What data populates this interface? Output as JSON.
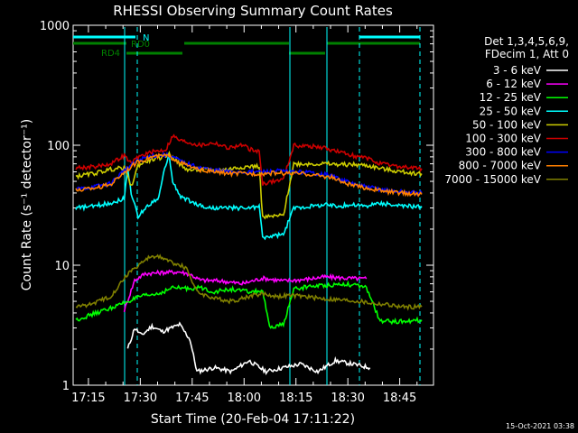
{
  "chart_data": {
    "type": "line",
    "title": "RHESSI Observing Summary Count Rates",
    "xlabel": "Start Time (20-Feb-04 17:11:22)",
    "ylabel": "Count Rate (s⁻¹ detector⁻¹)",
    "x_unit": "minutes after 17:11:22",
    "xlim": [
      0,
      100
    ],
    "ylim": [
      1,
      1000
    ],
    "yscale": "log",
    "x_ticks": [
      "17:15",
      "17:30",
      "17:45",
      "18:00",
      "18:15",
      "18:30",
      "18:45"
    ],
    "y_ticks": [
      "1",
      "10",
      "100",
      "1000"
    ],
    "legend_header": [
      "Det 1,3,4,5,6,9,",
      "FDecim 1, Att 0"
    ],
    "footer": "15-Oct-2021 03:38",
    "bars": [
      {
        "label": "N",
        "color": "#00ffff"
      },
      {
        "label": "RD0",
        "color": "#008000"
      },
      {
        "label": "RD4",
        "color": "#008000"
      }
    ],
    "series": [
      {
        "name": "3 - 6 keV",
        "color": "#ffffff",
        "points": [
          [
            15,
            2.0
          ],
          [
            17,
            3.0
          ],
          [
            19,
            2.6
          ],
          [
            22,
            3.1
          ],
          [
            25,
            2.8
          ],
          [
            30,
            3.2
          ],
          [
            33,
            2.4
          ],
          [
            35,
            1.3
          ],
          [
            40,
            1.4
          ],
          [
            45,
            1.3
          ],
          [
            50,
            1.6
          ],
          [
            55,
            1.3
          ],
          [
            60,
            1.4
          ],
          [
            65,
            1.5
          ],
          [
            70,
            1.3
          ],
          [
            75,
            1.6
          ],
          [
            80,
            1.5
          ],
          [
            85,
            1.4
          ]
        ]
      },
      {
        "name": "6 - 12 keV",
        "color": "#ff00ff",
        "points": [
          [
            14,
            4.2
          ],
          [
            17,
            7.5
          ],
          [
            20,
            8.5
          ],
          [
            25,
            8.7
          ],
          [
            30,
            8.8
          ],
          [
            33,
            8.4
          ],
          [
            36,
            7.5
          ],
          [
            42,
            7.4
          ],
          [
            48,
            7.0
          ],
          [
            54,
            7.8
          ],
          [
            60,
            7.4
          ],
          [
            66,
            7.6
          ],
          [
            72,
            8.0
          ],
          [
            78,
            7.8
          ],
          [
            84,
            7.7
          ]
        ]
      },
      {
        "name": "12 - 25 keV",
        "color": "#00ff00",
        "points": [
          [
            0,
            3.5
          ],
          [
            6,
            4.0
          ],
          [
            12,
            4.6
          ],
          [
            15,
            5.0
          ],
          [
            19,
            5.5
          ],
          [
            24,
            5.8
          ],
          [
            28,
            6.5
          ],
          [
            32,
            6.4
          ],
          [
            36,
            6.5
          ],
          [
            40,
            6.0
          ],
          [
            45,
            6.3
          ],
          [
            50,
            6.0
          ],
          [
            54,
            6.1
          ],
          [
            56,
            3.0
          ],
          [
            60,
            3.2
          ],
          [
            63,
            6.3
          ],
          [
            68,
            6.7
          ],
          [
            72,
            6.8
          ],
          [
            78,
            7.0
          ],
          [
            84,
            6.5
          ],
          [
            88,
            3.4
          ],
          [
            94,
            3.4
          ],
          [
            100,
            3.5
          ]
        ]
      },
      {
        "name": "25 - 50 keV",
        "color": "#00ffff",
        "points": [
          [
            0,
            30
          ],
          [
            5,
            31
          ],
          [
            10,
            33
          ],
          [
            14,
            36
          ],
          [
            15,
            65
          ],
          [
            16,
            40
          ],
          [
            18,
            25
          ],
          [
            20,
            30
          ],
          [
            24,
            37
          ],
          [
            26,
            70
          ],
          [
            27,
            80
          ],
          [
            28,
            50
          ],
          [
            30,
            38
          ],
          [
            34,
            33
          ],
          [
            38,
            30
          ],
          [
            42,
            30
          ],
          [
            46,
            30
          ],
          [
            50,
            30
          ],
          [
            53,
            31
          ],
          [
            54,
            17
          ],
          [
            60,
            18
          ],
          [
            63,
            30
          ],
          [
            68,
            31
          ],
          [
            72,
            32
          ],
          [
            76,
            31
          ],
          [
            80,
            32
          ],
          [
            84,
            31
          ],
          [
            88,
            33
          ],
          [
            94,
            31
          ],
          [
            100,
            31
          ]
        ]
      },
      {
        "name": "50 - 100 keV",
        "color": "#cccc00",
        "points": [
          [
            0,
            55
          ],
          [
            5,
            58
          ],
          [
            10,
            63
          ],
          [
            14,
            65
          ],
          [
            16,
            45
          ],
          [
            18,
            68
          ],
          [
            21,
            75
          ],
          [
            24,
            78
          ],
          [
            27,
            84
          ],
          [
            29,
            75
          ],
          [
            31,
            65
          ],
          [
            33,
            62
          ],
          [
            36,
            63
          ],
          [
            40,
            62
          ],
          [
            44,
            63
          ],
          [
            48,
            66
          ],
          [
            53,
            67
          ],
          [
            54,
            25
          ],
          [
            60,
            26
          ],
          [
            63,
            70
          ],
          [
            68,
            70
          ],
          [
            72,
            70
          ],
          [
            76,
            69
          ],
          [
            80,
            69
          ],
          [
            84,
            68
          ],
          [
            88,
            64
          ],
          [
            94,
            60
          ],
          [
            100,
            58
          ]
        ]
      },
      {
        "name": "100 - 300 keV",
        "color": "#cc0000",
        "points": [
          [
            0,
            65
          ],
          [
            5,
            66
          ],
          [
            10,
            70
          ],
          [
            14,
            82
          ],
          [
            16,
            70
          ],
          [
            18,
            80
          ],
          [
            22,
            88
          ],
          [
            26,
            92
          ],
          [
            28,
            120
          ],
          [
            30,
            110
          ],
          [
            33,
            105
          ],
          [
            36,
            100
          ],
          [
            40,
            105
          ],
          [
            44,
            95
          ],
          [
            48,
            100
          ],
          [
            52,
            88
          ],
          [
            53,
            90
          ],
          [
            54,
            48
          ],
          [
            60,
            52
          ],
          [
            63,
            100
          ],
          [
            68,
            98
          ],
          [
            72,
            95
          ],
          [
            76,
            88
          ],
          [
            80,
            82
          ],
          [
            84,
            78
          ],
          [
            88,
            70
          ],
          [
            94,
            66
          ],
          [
            100,
            64
          ]
        ]
      },
      {
        "name": "300 - 800 keV",
        "color": "#0000ff",
        "points": [
          [
            0,
            43
          ],
          [
            5,
            45
          ],
          [
            10,
            48
          ],
          [
            14,
            62
          ],
          [
            18,
            75
          ],
          [
            22,
            82
          ],
          [
            26,
            83
          ],
          [
            28,
            80
          ],
          [
            31,
            72
          ],
          [
            35,
            66
          ],
          [
            40,
            62
          ],
          [
            45,
            60
          ],
          [
            50,
            60
          ],
          [
            54,
            60
          ],
          [
            58,
            61
          ],
          [
            62,
            60
          ],
          [
            66,
            60
          ],
          [
            70,
            58
          ],
          [
            74,
            56
          ],
          [
            78,
            50
          ],
          [
            82,
            46
          ],
          [
            86,
            44
          ],
          [
            90,
            42
          ],
          [
            94,
            41
          ],
          [
            100,
            40
          ]
        ]
      },
      {
        "name": "800 - 7000 keV",
        "color": "#ff8000",
        "points": [
          [
            0,
            42
          ],
          [
            5,
            44
          ],
          [
            10,
            47
          ],
          [
            14,
            60
          ],
          [
            18,
            73
          ],
          [
            22,
            80
          ],
          [
            26,
            82
          ],
          [
            28,
            78
          ],
          [
            31,
            70
          ],
          [
            35,
            63
          ],
          [
            40,
            60
          ],
          [
            45,
            58
          ],
          [
            50,
            58
          ],
          [
            54,
            58
          ],
          [
            58,
            59
          ],
          [
            62,
            58
          ],
          [
            66,
            58
          ],
          [
            70,
            56
          ],
          [
            74,
            54
          ],
          [
            78,
            48
          ],
          [
            82,
            45
          ],
          [
            86,
            43
          ],
          [
            90,
            41
          ],
          [
            94,
            40
          ],
          [
            100,
            39
          ]
        ]
      },
      {
        "name": "7000 - 15000 keV",
        "color": "#808000",
        "points": [
          [
            0,
            4.5
          ],
          [
            5,
            4.8
          ],
          [
            10,
            5.5
          ],
          [
            15,
            8.5
          ],
          [
            19,
            10.5
          ],
          [
            22,
            12.0
          ],
          [
            25,
            11.5
          ],
          [
            28,
            10.5
          ],
          [
            32,
            9.5
          ],
          [
            35,
            6.0
          ],
          [
            40,
            5.3
          ],
          [
            45,
            5.0
          ],
          [
            50,
            5.5
          ],
          [
            54,
            5.8
          ],
          [
            58,
            5.5
          ],
          [
            62,
            5.6
          ],
          [
            66,
            5.5
          ],
          [
            70,
            5.3
          ],
          [
            74,
            5.2
          ],
          [
            78,
            5.1
          ],
          [
            82,
            5.0
          ],
          [
            86,
            4.8
          ],
          [
            90,
            4.7
          ],
          [
            94,
            4.5
          ],
          [
            100,
            4.5
          ]
        ]
      }
    ]
  }
}
